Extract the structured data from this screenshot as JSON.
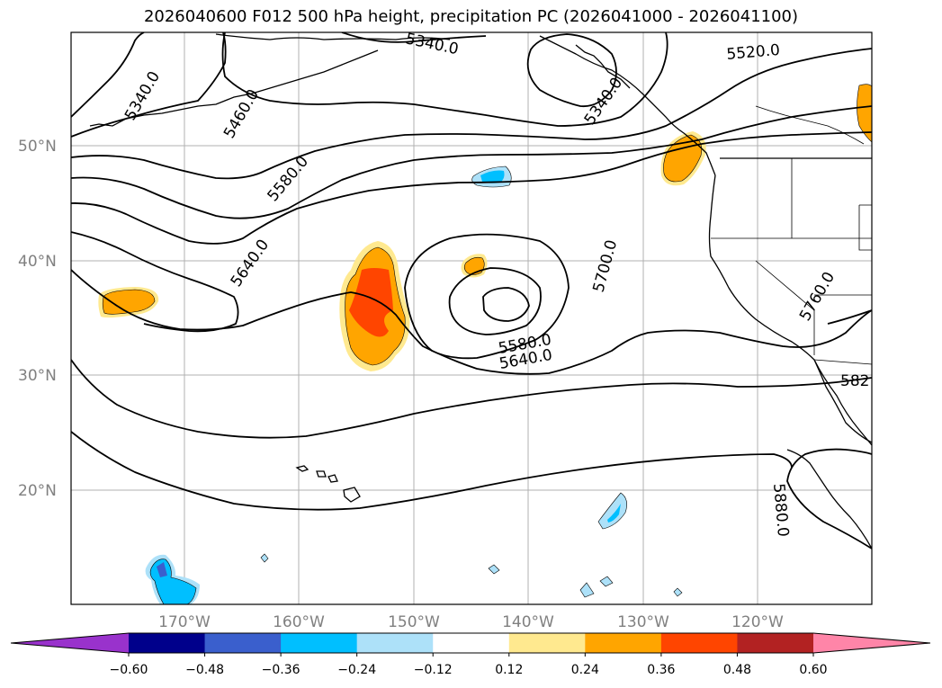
{
  "title": "2026040600 F012 500 hPa height, precipitation PC (2026041000 - 2026041100)",
  "lat_labels": [
    "50°N",
    "40°N",
    "30°N",
    "20°N"
  ],
  "lon_labels": [
    "170°W",
    "160°W",
    "150°W",
    "140°W",
    "130°W",
    "120°W"
  ],
  "contour_labels": [
    "5340.0",
    "5460.0",
    "5340.0",
    "5340.0",
    "5520.0",
    "5580.0",
    "5640.0",
    "5700.0",
    "5580.0",
    "5640.0",
    "5760.0",
    "582",
    "5880.0"
  ],
  "colorbar": {
    "ticks": [
      "−0.60",
      "−0.48",
      "−0.36",
      "−0.24",
      "−0.12",
      "0.12",
      "0.24",
      "0.36",
      "0.48",
      "0.60"
    ],
    "colors": [
      "#9932CC",
      "#00008B",
      "#3A5FCD",
      "#00BFFF",
      "#ADE1F9",
      "#FFFFFF",
      "#FFE98F",
      "#FFA500",
      "#FF4500",
      "#B22222",
      "#FF85A8"
    ]
  }
}
